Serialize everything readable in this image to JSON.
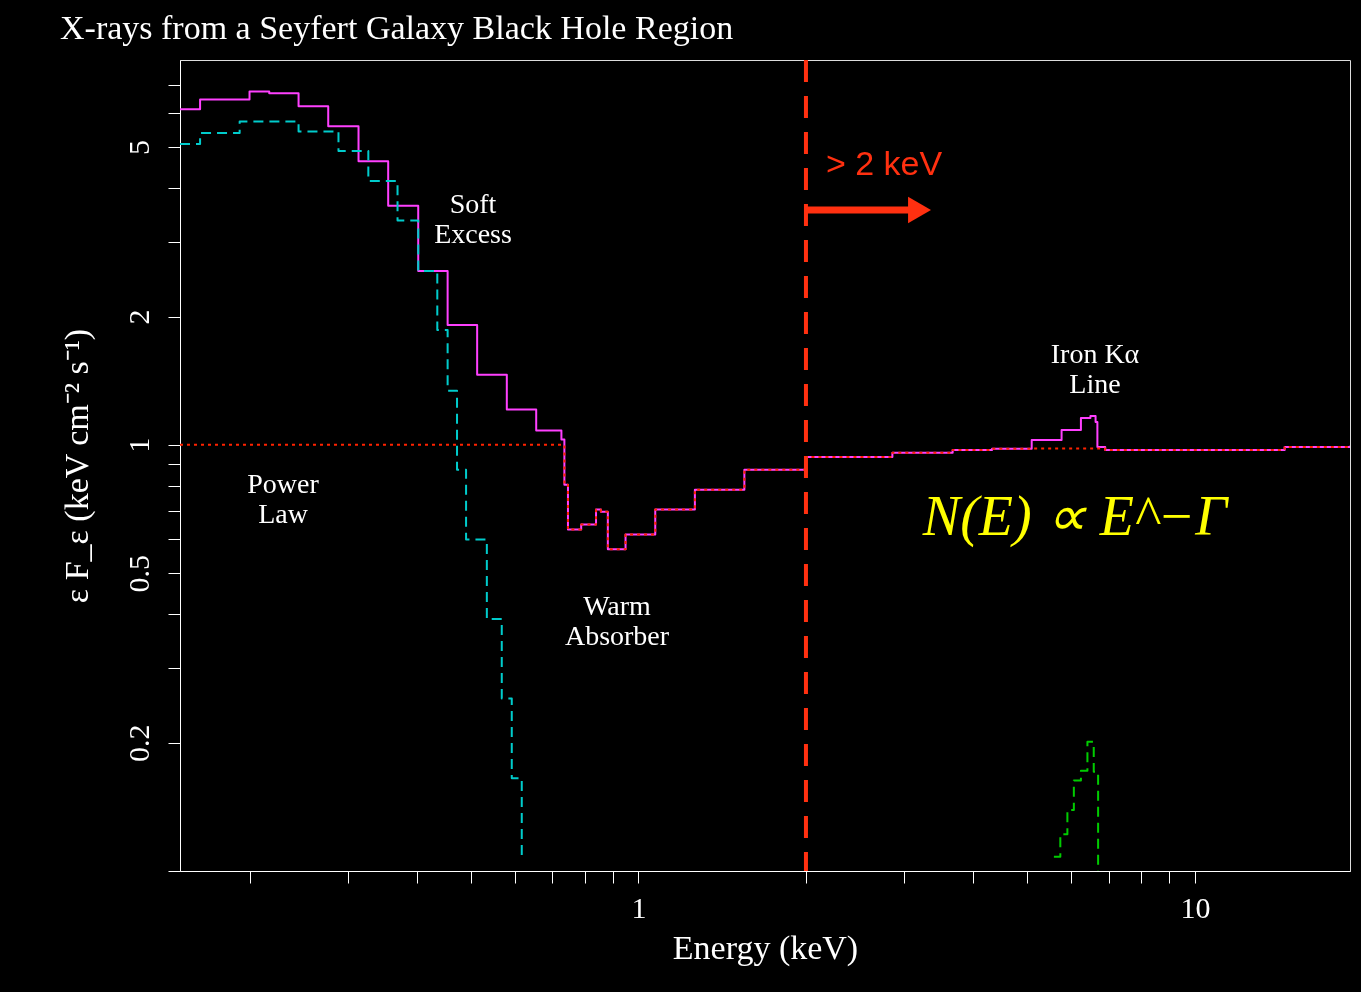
{
  "chart_data": {
    "type": "step",
    "title": "X-rays from a Seyfert Galaxy Black Hole Region",
    "xlabel": "Energy (keV)",
    "ylabel": "ε F_ε (keV cm⁻² s⁻¹)",
    "log": "xy",
    "grid": false,
    "marker": "none",
    "xlim": [
      0.15,
      19
    ],
    "ylim": [
      0.1,
      8
    ],
    "xticks": [
      {
        "value": 0.2,
        "label": null
      },
      {
        "value": 0.3,
        "label": null
      },
      {
        "value": 0.4,
        "label": null
      },
      {
        "value": 0.5,
        "label": null
      },
      {
        "value": 0.6,
        "label": null
      },
      {
        "value": 0.7,
        "label": null
      },
      {
        "value": 0.8,
        "label": null
      },
      {
        "value": 0.9,
        "label": null
      },
      1,
      {
        "value": 2,
        "label": null
      },
      {
        "value": 3,
        "label": null
      },
      {
        "value": 4,
        "label": null
      },
      {
        "value": 5,
        "label": null
      },
      {
        "value": 6,
        "label": null
      },
      {
        "value": 7,
        "label": null
      },
      {
        "value": 8,
        "label": null
      },
      {
        "value": 9,
        "label": null
      },
      10
    ],
    "yticks": [
      {
        "value": 0.1,
        "label": null
      },
      0.2,
      {
        "value": 0.3,
        "label": null
      },
      {
        "value": 0.4,
        "label": null
      },
      0.5,
      {
        "value": 0.6,
        "label": null
      },
      {
        "value": 0.7,
        "label": null
      },
      {
        "value": 0.8,
        "label": null
      },
      {
        "value": 0.9,
        "label": null
      },
      1,
      2,
      {
        "value": 3,
        "label": null
      },
      {
        "value": 4,
        "label": null
      },
      5,
      {
        "value": 6,
        "label": null
      },
      {
        "value": 7,
        "label": null
      }
    ],
    "series": [
      {
        "color": "#ff40ff",
        "line_style": "solid",
        "x": [
          0.15,
          0.163,
          0.2,
          0.217,
          0.245,
          0.277,
          0.314,
          0.355,
          0.402,
          0.454,
          0.513,
          0.58,
          0.655,
          0.727,
          0.736,
          0.747,
          0.789,
          0.839,
          0.856,
          0.881,
          0.948,
          1.072,
          1.263,
          1.55,
          2.0,
          2.86,
          3.67,
          4.32,
          5.09,
          5.76,
          6.24,
          6.49,
          6.63,
          6.68,
          6.9,
          14.2,
          14.5,
          19
        ],
        "values": [
          6.13,
          6.46,
          6.75,
          6.68,
          6.23,
          5.59,
          4.63,
          3.64,
          2.56,
          1.91,
          1.46,
          1.21,
          1.08,
          1.03,
          0.806,
          0.633,
          0.65,
          0.705,
          0.697,
          0.569,
          0.616,
          0.705,
          0.785,
          0.874,
          0.937,
          0.958,
          0.973,
          0.979,
          1.027,
          1.084,
          1.156,
          1.169,
          1.132,
          0.989,
          0.973,
          0.973,
          0.989,
          0.995
        ]
      },
      {
        "color": "#00cccc",
        "line_style": "dashed",
        "x": [
          0.15,
          0.163,
          0.192,
          0.217,
          0.245,
          0.289,
          0.327,
          0.369,
          0.402,
          0.435,
          0.454,
          0.472,
          0.49,
          0.534,
          0.568,
          0.592,
          0.617
        ],
        "values": [
          5.08,
          5.39,
          5.74,
          5.74,
          5.44,
          4.89,
          4.16,
          3.36,
          2.56,
          1.86,
          1.34,
          0.874,
          0.6,
          0.39,
          0.254,
          0.165,
          0.107
        ]
      },
      {
        "color": "#ff2200",
        "line_style": "dotted",
        "x": [
          0.15,
          0.727,
          0.736,
          0.747,
          0.789,
          0.839,
          0.856,
          0.881,
          0.948,
          1.072,
          1.263,
          1.55,
          2.0,
          2.86,
          3.67,
          4.32,
          5.09,
          6.68,
          6.9,
          14.2,
          14.5,
          19
        ],
        "values": [
          1.0,
          1.0,
          0.806,
          0.633,
          0.65,
          0.705,
          0.697,
          0.569,
          0.616,
          0.705,
          0.785,
          0.874,
          0.937,
          0.958,
          0.973,
          0.979,
          0.98,
          0.98,
          0.973,
          0.973,
          0.989,
          0.995
        ]
      },
      {
        "color": "#00cc00",
        "line_style": "dashed",
        "x": [
          5.58,
          5.73,
          5.9,
          6.06,
          6.24,
          6.41,
          6.58,
          6.7
        ],
        "values": [
          0.108,
          0.122,
          0.139,
          0.163,
          0.172,
          0.201,
          0.171,
          0.1
        ]
      }
    ],
    "ref_lines": [
      {
        "axis": "x",
        "value": 2,
        "label": "> 2 keV",
        "color": "#ff3010",
        "line_style": "dashed"
      }
    ],
    "annotations": [
      "Soft\nExcess",
      "Power\nLaw",
      "Warm\nAbsorber",
      "Iron Kα\nLine",
      "N(E) ∝ E^−Γ"
    ]
  }
}
